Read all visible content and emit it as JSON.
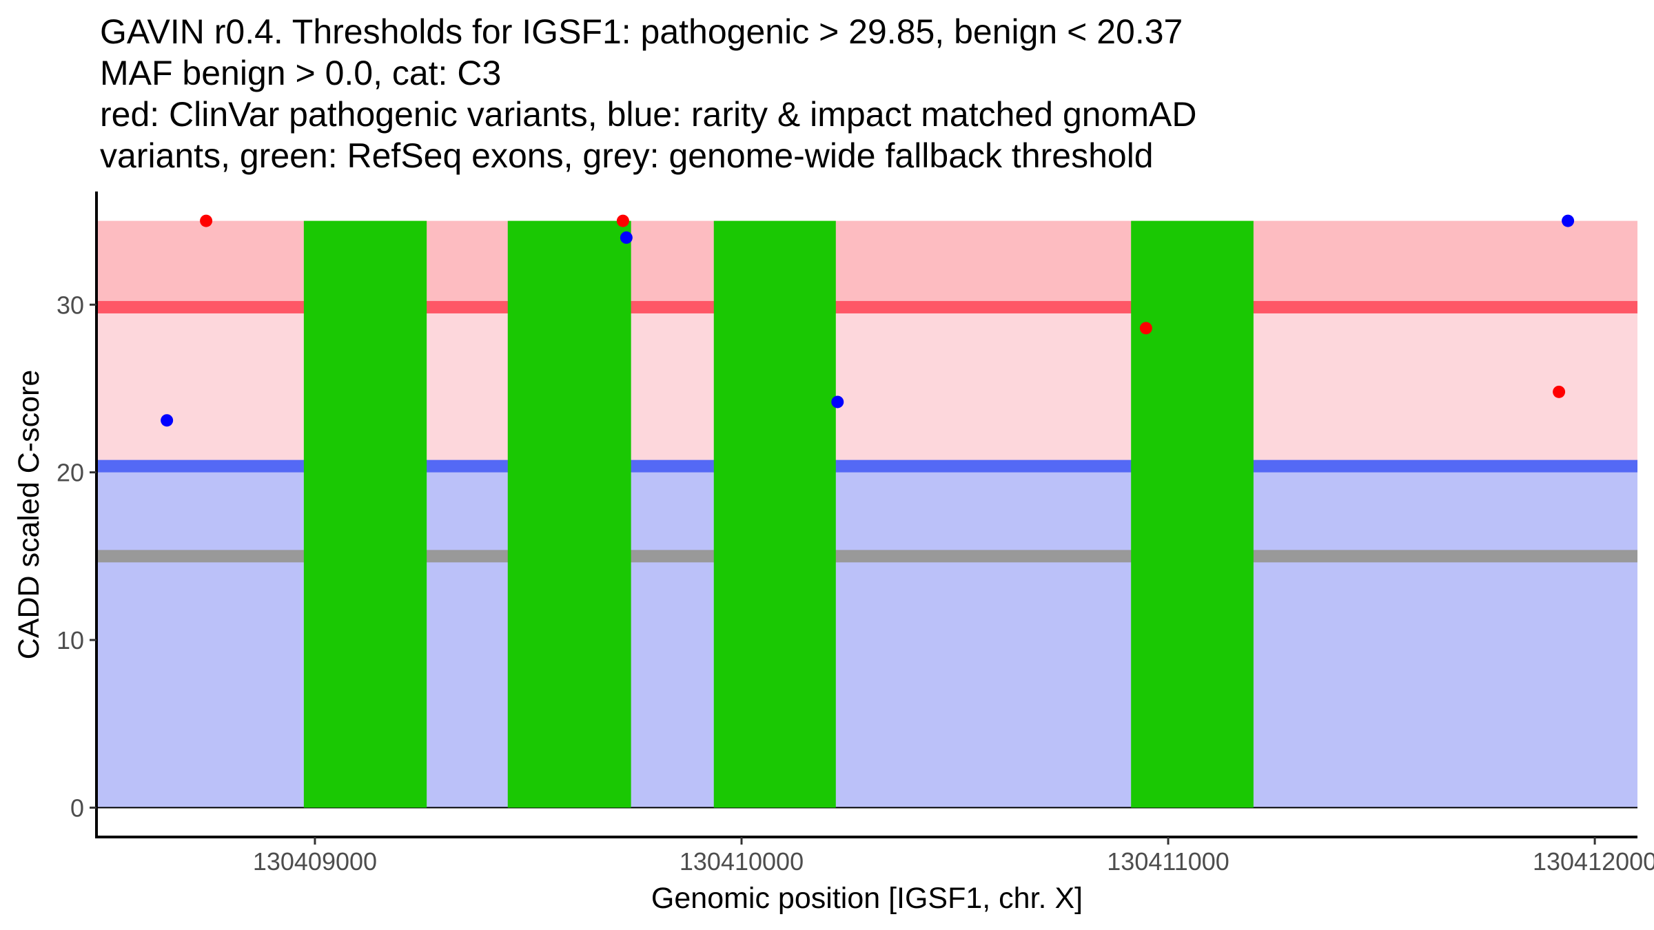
{
  "chart_data": {
    "type": "scatter",
    "title_lines": [
      "GAVIN r0.4. Thresholds for IGSF1: pathogenic > 29.85, benign < 20.37",
      "MAF benign > 0.0, cat: C3",
      "red: ClinVar pathogenic variants, blue: rarity & impact matched gnomAD",
      "variants, green: RefSeq exons, grey: genome-wide fallback threshold"
    ],
    "xlabel": "Genomic position [IGSF1, chr. X]",
    "ylabel": "CADD scaled C-score",
    "xlim": [
      130408488,
      130412100
    ],
    "ylim": [
      -1.75,
      36.75
    ],
    "x_ticks": [
      {
        "value": 130409000,
        "label": "130409000"
      },
      {
        "value": 130410000,
        "label": "130410000"
      },
      {
        "value": 130411000,
        "label": "130411000"
      },
      {
        "value": 130412000,
        "label": "130412000"
      }
    ],
    "y_ticks": [
      {
        "value": 0,
        "label": "0"
      },
      {
        "value": 10,
        "label": "10"
      },
      {
        "value": 20,
        "label": "20"
      },
      {
        "value": 30,
        "label": "30"
      }
    ],
    "grid": false,
    "thresholds": {
      "pathogenic": 29.85,
      "benign": 20.37,
      "genome_wide_fallback": 15,
      "max_score": 35,
      "zero_line": 0
    },
    "bands": [
      {
        "name": "pathogenic-band",
        "from": 29.85,
        "to": 35,
        "color": "#fdbcc1"
      },
      {
        "name": "grey-zone-band",
        "from": 20.37,
        "to": 29.85,
        "color": "#fdd7dc"
      },
      {
        "name": "benign-band",
        "from": 0,
        "to": 20.37,
        "color": "#bbc1f9"
      }
    ],
    "threshold_lines": [
      {
        "name": "pathogenic-threshold-line",
        "value": 29.85,
        "color": "#fe5766"
      },
      {
        "name": "benign-threshold-line",
        "value": 20.37,
        "color": "#5469f5"
      },
      {
        "name": "fallback-threshold-line",
        "value": 15,
        "color": "#999999"
      }
    ],
    "exons": {
      "color": "#1ac803",
      "ymax": 35,
      "ranges": [
        [
          130408974,
          130409262
        ],
        [
          130409452,
          130409741
        ],
        [
          130409935,
          130410221
        ],
        [
          130410913,
          130411200
        ]
      ]
    },
    "series": [
      {
        "name": "ClinVar pathogenic variants",
        "color": "#ff0000",
        "points": [
          {
            "x": 130408745,
            "y": 35.0
          },
          {
            "x": 130409722,
            "y": 35.0
          },
          {
            "x": 130410948,
            "y": 28.6
          },
          {
            "x": 130411916,
            "y": 24.8
          }
        ]
      },
      {
        "name": "rarity & impact matched gnomAD variants",
        "color": "#0000ff",
        "points": [
          {
            "x": 130408653,
            "y": 23.1
          },
          {
            "x": 130409730,
            "y": 34.0
          },
          {
            "x": 130410225,
            "y": 24.2
          },
          {
            "x": 130411937,
            "y": 35.0
          }
        ]
      }
    ]
  }
}
